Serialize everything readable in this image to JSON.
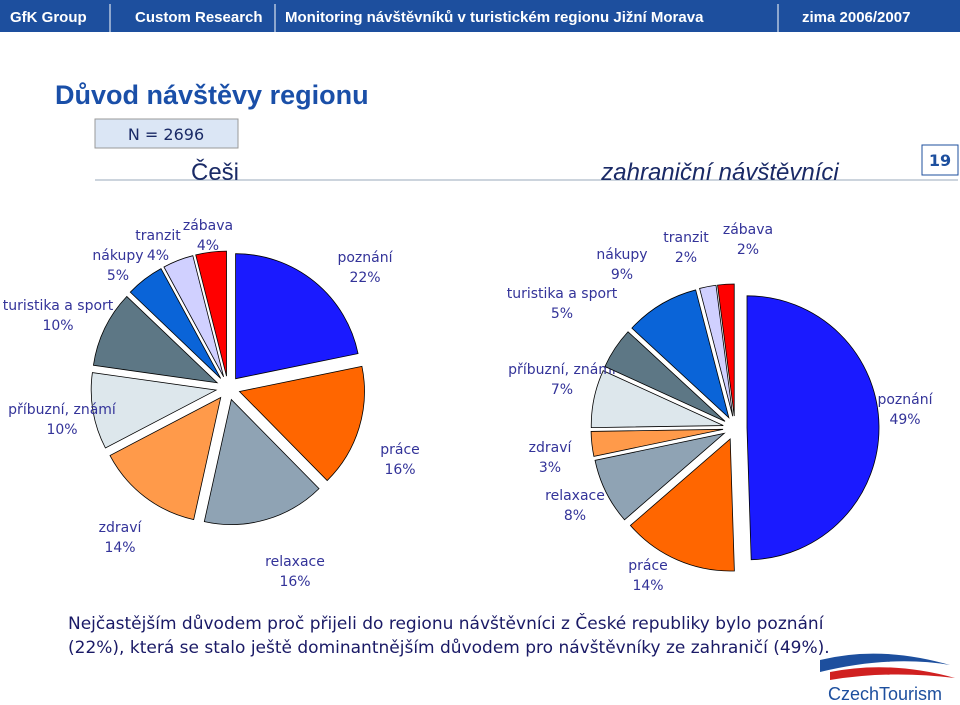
{
  "header": {
    "company": "GfK Group",
    "division": "Custom Research",
    "project": "Monitoring návštěvníků v turistickém regionu Jižní Morava",
    "period": "zima 2006/2007"
  },
  "title": "Důvod návštěvy regionu",
  "sample": "N = 2696",
  "page_number": "19",
  "chart_data": [
    {
      "type": "pie",
      "title": "Češi",
      "categories": [
        "poznání",
        "práce",
        "relaxace",
        "zdraví",
        "příbuzní, známí",
        "turistika a sport",
        "nákupy",
        "tranzit",
        "zábava"
      ],
      "values": [
        22,
        16,
        16,
        14,
        10,
        10,
        5,
        4,
        4
      ],
      "value_labels": [
        "22%",
        "16%",
        "16%",
        "14%",
        "10%",
        "10%",
        "5%",
        "4%",
        "4%"
      ],
      "colors": [
        "#1a1aff",
        "#ff6600",
        "#8fa3b4",
        "#ff9a4a",
        "#dde7ec",
        "#5d7785",
        "#0a64d8",
        "#d0d0ff",
        "#ff0000"
      ]
    },
    {
      "type": "pie",
      "title": "zahraniční návštěvníci",
      "categories": [
        "poznání",
        "práce",
        "relaxace",
        "zdraví",
        "příbuzní, známí",
        "turistika a sport",
        "nákupy",
        "tranzit",
        "zábava"
      ],
      "values": [
        49,
        14,
        8,
        3,
        7,
        5,
        9,
        2,
        2
      ],
      "value_labels": [
        "49%",
        "14%",
        "8%",
        "3%",
        "7%",
        "5%",
        "9%",
        "2%",
        "2%"
      ],
      "colors": [
        "#1a1aff",
        "#ff6600",
        "#8fa3b4",
        "#ff9a4a",
        "#dde7ec",
        "#5d7785",
        "#0a64d8",
        "#d0d0ff",
        "#ff0000"
      ]
    }
  ],
  "note": "Nejčastějším důvodem proč přijeli do regionu návštěvníci z České republiky bylo poznání (22%), která se stalo ještě dominantnějším důvodem pro návštěvníky ze zahraničí (49%).",
  "logo": "CzechTourism"
}
